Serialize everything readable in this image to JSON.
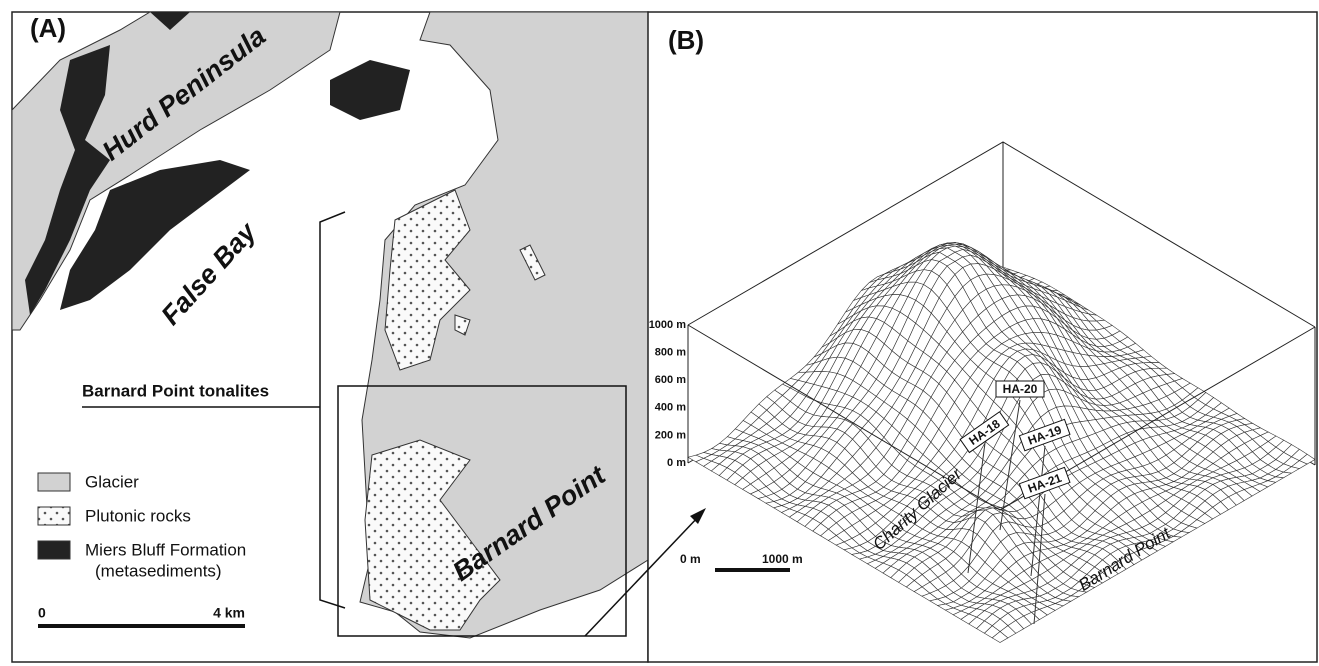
{
  "panel_a": {
    "label": "(A)",
    "places": [
      "Hurd Peninsula",
      "False Bay",
      "Barnard Point"
    ],
    "callout": "Barnard Point tonalites",
    "legend": [
      {
        "label": "Glacier"
      },
      {
        "label": "Plutonic rocks"
      },
      {
        "label": "Miers Bluff Formation",
        "note": "(metasediments)"
      }
    ],
    "scale": [
      "0",
      "4 km"
    ]
  },
  "panel_b": {
    "label": "(B)",
    "elevations": [
      "1000 m",
      "800 m",
      "600 m",
      "400 m",
      "200 m",
      "0 m"
    ],
    "samples": [
      "HA-20",
      "HA-18",
      "HA-19",
      "HA-21"
    ],
    "places": [
      "Charity Glacier",
      "Barnard Point"
    ],
    "scale": [
      "0 m",
      "1000 m"
    ]
  }
}
